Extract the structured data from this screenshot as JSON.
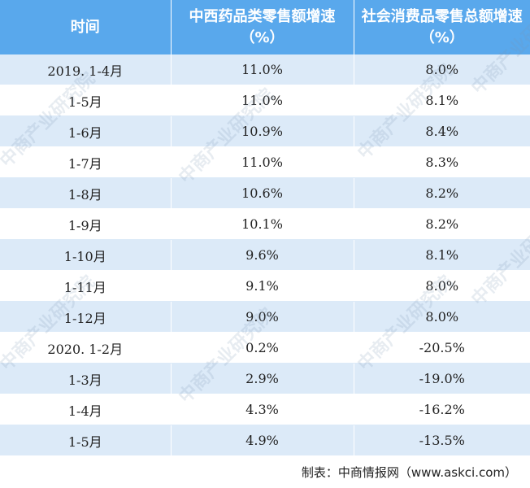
{
  "table": {
    "headers": [
      "时间",
      "中西药品类零售额增速（%）",
      "社会消费品零售总额增速（%）"
    ],
    "rows": [
      [
        "2019. 1-4月",
        "11.0%",
        "8.0%"
      ],
      [
        "1-5月",
        "11.0%",
        "8.1%"
      ],
      [
        "1-6月",
        "10.9%",
        "8.4%"
      ],
      [
        "1-7月",
        "11.0%",
        "8.3%"
      ],
      [
        "1-8月",
        "10.6%",
        "8.2%"
      ],
      [
        "1-9月",
        "10.1%",
        "8.2%"
      ],
      [
        "1-10月",
        "9.6%",
        "8.1%"
      ],
      [
        "1-11月",
        "9.1%",
        "8.0%"
      ],
      [
        "1-12月",
        "9.0%",
        "8.0%"
      ],
      [
        "2020. 1-2月",
        "0.2%",
        "-20.5%"
      ],
      [
        "1-3月",
        "2.9%",
        "-19.0%"
      ],
      [
        "1-4月",
        "4.3%",
        "-16.2%"
      ],
      [
        "1-5月",
        "4.9%",
        "-13.5%"
      ]
    ]
  },
  "source_note": "制表：中商情报网（www.askci.com）",
  "watermark_text": "中商产业研究院"
}
